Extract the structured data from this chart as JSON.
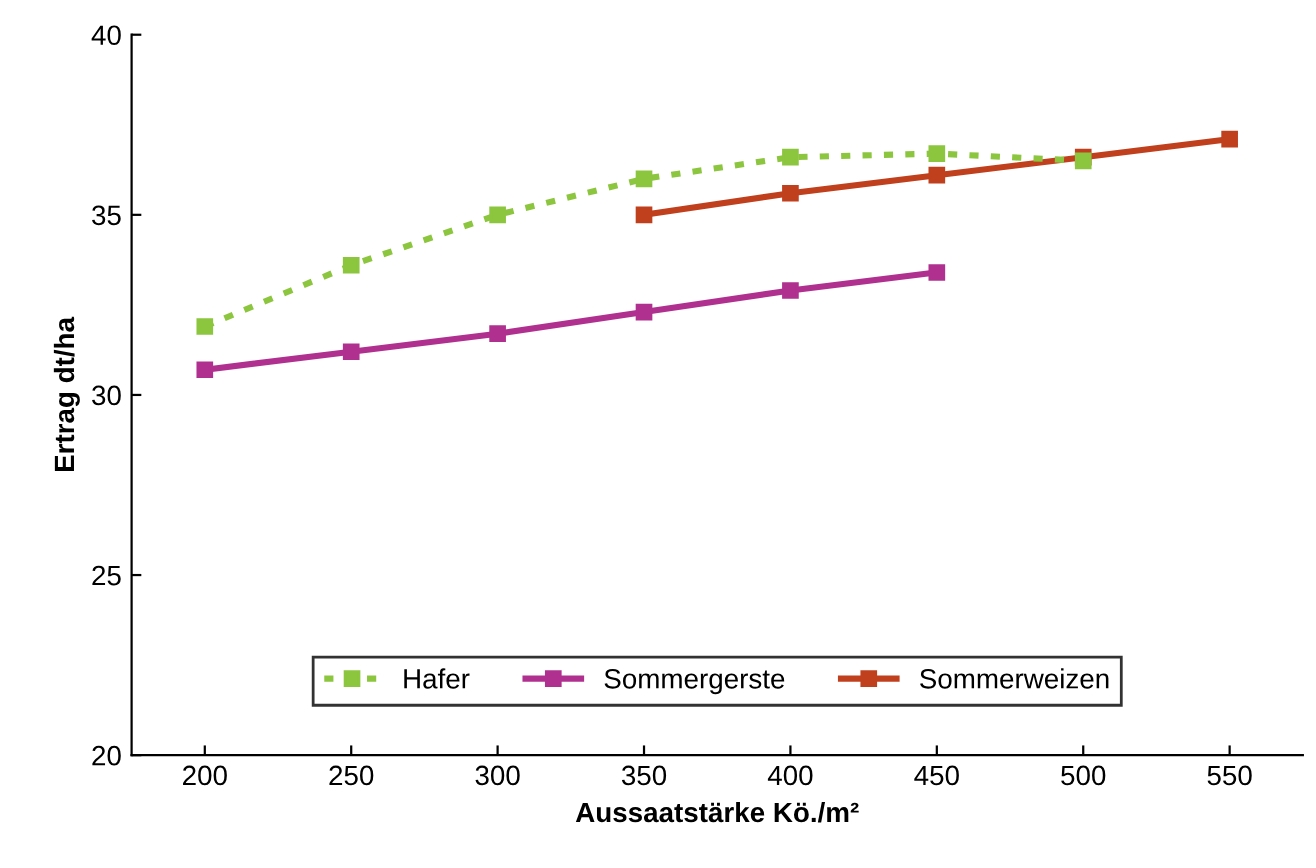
{
  "chart_data": {
    "type": "line",
    "xlabel": "Aussaatstärke Kö./m²",
    "ylabel": "Ertrag dt/ha",
    "xlim": [
      175,
      575
    ],
    "xticks": [
      200,
      250,
      300,
      350,
      400,
      450,
      500,
      550
    ],
    "ylim": [
      20,
      40
    ],
    "yticks": [
      20,
      25,
      30,
      35,
      40
    ],
    "grid": false,
    "legend": "bottom",
    "marker": "square",
    "series": [
      {
        "name": "Hafer",
        "color": "#8cc63f",
        "line_style": "dotted",
        "x": [
          200,
          250,
          300,
          350,
          400,
          450,
          500
        ],
        "values": [
          31.9,
          33.6,
          35.0,
          36.0,
          36.6,
          36.7,
          36.5
        ]
      },
      {
        "name": "Sommergerste",
        "color": "#b03090",
        "line_style": "solid",
        "x": [
          200,
          250,
          300,
          350,
          400,
          450
        ],
        "values": [
          30.7,
          31.2,
          31.7,
          32.3,
          32.9,
          33.4
        ]
      },
      {
        "name": "Sommerweizen",
        "color": "#c0401e",
        "line_style": "solid",
        "x": [
          350,
          400,
          450,
          500,
          550
        ],
        "values": [
          35.0,
          35.6,
          36.1,
          36.6,
          37.1
        ]
      }
    ]
  }
}
